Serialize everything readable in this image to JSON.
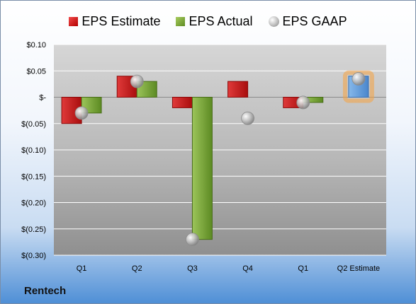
{
  "chart_data": {
    "type": "bar",
    "categories": [
      "Q1",
      "Q2",
      "Q3",
      "Q4",
      "Q1",
      "Q2 Estimate"
    ],
    "series": [
      {
        "name": "EPS Estimate",
        "values": [
          -0.05,
          0.04,
          -0.02,
          0.03,
          -0.02,
          null
        ],
        "color": "#cc1f1f"
      },
      {
        "name": "EPS Actual",
        "values": [
          -0.03,
          0.03,
          -0.27,
          null,
          -0.01,
          null
        ],
        "color": "#7aa33a"
      },
      {
        "name": "EPS GAAP",
        "values": [
          -0.03,
          0.03,
          -0.27,
          -0.04,
          -0.01,
          0.035
        ],
        "color": "#a6a6a6",
        "marker": "circle"
      }
    ],
    "forward_estimate": {
      "category": "Q2 Estimate",
      "value": 0.04,
      "color": "#5b9bd5",
      "glow": "#f5a340"
    },
    "ylim": [
      -0.3,
      0.1
    ],
    "yticks": [
      0.1,
      0.05,
      0,
      -0.05,
      -0.1,
      -0.15,
      -0.2,
      -0.25,
      -0.3
    ],
    "ytick_labels": [
      "$0.10",
      "$0.05",
      "$-",
      "$(0.05)",
      "$(0.10)",
      "$(0.15)",
      "$(0.20)",
      "$(0.25)",
      "$(0.30)"
    ],
    "legend_position": "top",
    "grid": true
  },
  "legend": {
    "estimate_label": "EPS Estimate",
    "actual_label": "EPS Actual",
    "gaap_label": "EPS GAAP"
  },
  "company": "Rentech"
}
